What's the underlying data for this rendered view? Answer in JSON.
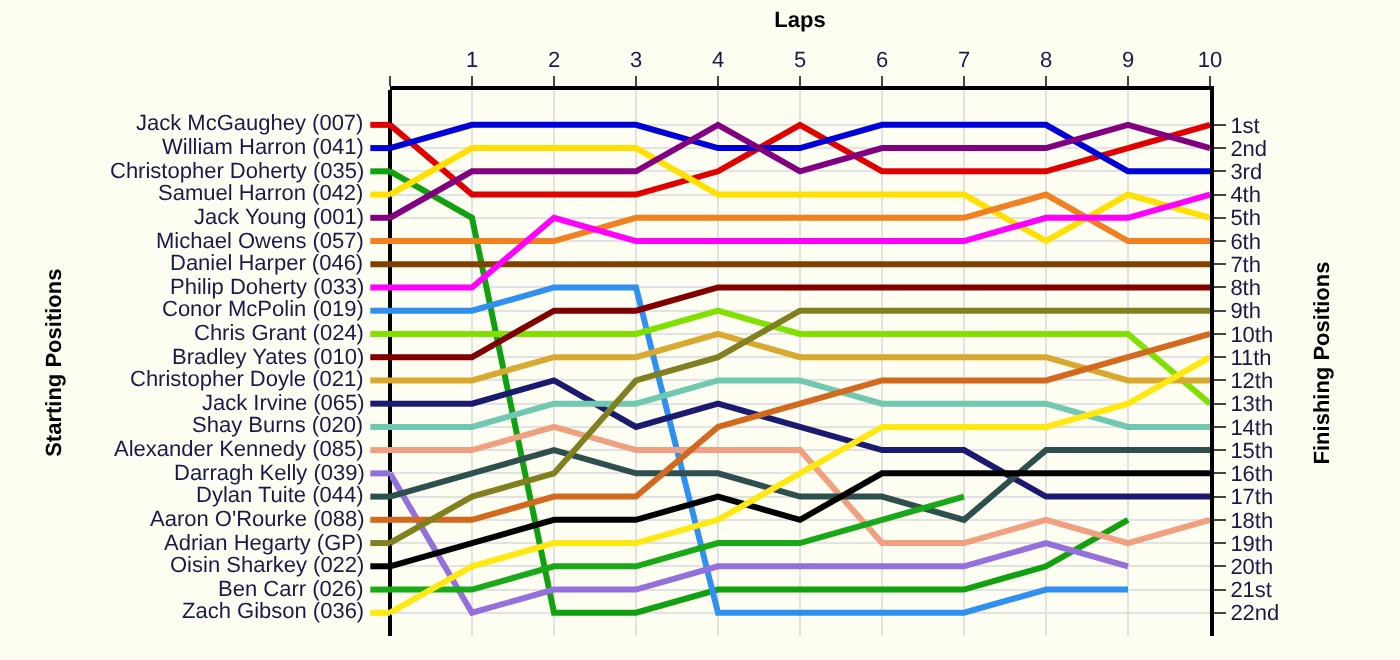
{
  "chart_data": {
    "type": "line",
    "xlabel": "Laps",
    "ylabel": "Finishing Positions",
    "grid": true,
    "legend": "left",
    "annotations": [
      "Starting Positions"
    ],
    "x": [
      0,
      1,
      2,
      3,
      4,
      5,
      6,
      7,
      8,
      9,
      10
    ],
    "xlim": [
      0,
      10
    ],
    "xticks": [
      {
        "value": 0,
        "label": null
      },
      1,
      2,
      3,
      4,
      5,
      6,
      7,
      8,
      9,
      10
    ],
    "ylim": [
      23,
      -0.5
    ],
    "yticks": [
      {
        "value": 1,
        "label": "1st"
      },
      {
        "value": 2,
        "label": "2nd"
      },
      {
        "value": 3,
        "label": "3rd"
      },
      {
        "value": 4,
        "label": "4th"
      },
      {
        "value": 5,
        "label": "5th"
      },
      {
        "value": 6,
        "label": "6th"
      },
      {
        "value": 7,
        "label": "7th"
      },
      {
        "value": 8,
        "label": "8th"
      },
      {
        "value": 9,
        "label": "9th"
      },
      {
        "value": 10,
        "label": "10th"
      },
      {
        "value": 11,
        "label": "11th"
      },
      {
        "value": 12,
        "label": "12th"
      },
      {
        "value": 13,
        "label": "13th"
      },
      {
        "value": 14,
        "label": "14th"
      },
      {
        "value": 15,
        "label": "15th"
      },
      {
        "value": 16,
        "label": "16th"
      },
      {
        "value": 17,
        "label": "17th"
      },
      {
        "value": 18,
        "label": "18th"
      },
      {
        "value": 19,
        "label": "19th"
      },
      {
        "value": 20,
        "label": "20th"
      },
      {
        "value": 21,
        "label": "21st"
      },
      {
        "value": 22,
        "label": "22nd"
      }
    ],
    "series": [
      {
        "name": "Jack McGaughey (007)",
        "color": "#e00000",
        "values": [
          1,
          4,
          4,
          4,
          3,
          1,
          3,
          3,
          3,
          2,
          1
        ]
      },
      {
        "name": "William Harron (041)",
        "color": "#0000d8",
        "values": [
          2,
          1,
          1,
          1,
          2,
          2,
          1,
          1,
          1,
          3,
          3
        ]
      },
      {
        "name": "Christopher Doherty (035)",
        "color": "#10a010",
        "values": [
          3,
          5,
          22,
          22,
          21,
          21,
          21,
          21,
          20,
          18,
          null
        ]
      },
      {
        "name": "Samuel Harron (042)",
        "color": "#ffe000",
        "values": [
          4,
          2,
          2,
          2,
          4,
          4,
          4,
          4,
          6,
          4,
          5
        ]
      },
      {
        "name": "Jack Young (001)",
        "color": "#800080",
        "values": [
          5,
          3,
          3,
          3,
          1,
          3,
          2,
          2,
          2,
          1,
          2
        ]
      },
      {
        "name": "Michael Owens (057)",
        "color": "#f08020",
        "values": [
          6,
          6,
          6,
          5,
          5,
          5,
          5,
          5,
          4,
          6,
          6
        ]
      },
      {
        "name": "Daniel Harper (046)",
        "color": "#804000",
        "values": [
          7,
          7,
          7,
          7,
          7,
          7,
          7,
          7,
          7,
          7,
          7
        ]
      },
      {
        "name": "Philip Doherty (033)",
        "color": "#ff00ff",
        "values": [
          8,
          8,
          5,
          6,
          6,
          6,
          6,
          6,
          5,
          5,
          4
        ]
      },
      {
        "name": "Conor McPolin (019)",
        "color": "#3090f0",
        "values": [
          9,
          9,
          8,
          8,
          22,
          22,
          22,
          22,
          21,
          21,
          null
        ]
      },
      {
        "name": "Chris Grant (024)",
        "color": "#80e000",
        "values": [
          10,
          10,
          10,
          10,
          9,
          10,
          10,
          10,
          10,
          10,
          13
        ]
      },
      {
        "name": "Bradley Yates (010)",
        "color": "#800000",
        "values": [
          11,
          11,
          9,
          9,
          8,
          8,
          8,
          8,
          8,
          8,
          8
        ]
      },
      {
        "name": "Christopher Doyle (021)",
        "color": "#d8a830",
        "values": [
          12,
          12,
          11,
          11,
          10,
          11,
          11,
          11,
          11,
          12,
          12
        ]
      },
      {
        "name": "Jack Irvine (065)",
        "color": "#1a1a70",
        "values": [
          13,
          13,
          12,
          14,
          13,
          14,
          15,
          15,
          17,
          17,
          17
        ]
      },
      {
        "name": "Shay Burns (020)",
        "color": "#70c8b0",
        "values": [
          14,
          14,
          13,
          13,
          12,
          12,
          13,
          13,
          13,
          14,
          14
        ]
      },
      {
        "name": "Alexander Kennedy (085)",
        "color": "#f0a080",
        "values": [
          15,
          15,
          14,
          15,
          15,
          15,
          19,
          19,
          18,
          19,
          18
        ]
      },
      {
        "name": "Darragh Kelly (039)",
        "color": "#9370db",
        "values": [
          16,
          22,
          21,
          21,
          20,
          20,
          20,
          20,
          19,
          20,
          null
        ]
      },
      {
        "name": "Dylan Tuite (044)",
        "color": "#2f4f4f",
        "values": [
          17,
          16,
          15,
          16,
          16,
          17,
          17,
          18,
          15,
          15,
          15
        ]
      },
      {
        "name": "Aaron O'Rourke (088)",
        "color": "#d2691e",
        "values": [
          18,
          18,
          17,
          17,
          14,
          13,
          12,
          12,
          12,
          11,
          10
        ]
      },
      {
        "name": "Adrian Hegarty (GP)",
        "color": "#808020",
        "values": [
          19,
          17,
          16,
          12,
          11,
          9,
          9,
          9,
          9,
          9,
          9
        ]
      },
      {
        "name": "Oisin Sharkey (022)",
        "color": "#000000",
        "values": [
          20,
          19,
          18,
          18,
          17,
          18,
          16,
          16,
          16,
          16,
          16
        ]
      },
      {
        "name": "Ben Carr (026)",
        "color": "#18a818",
        "values": [
          21,
          21,
          20,
          20,
          19,
          19,
          18,
          17,
          null,
          null,
          null
        ]
      },
      {
        "name": "Zach Gibson (036)",
        "color": "#ffe810",
        "values": [
          22,
          20,
          19,
          19,
          18,
          16,
          14,
          14,
          14,
          13,
          11
        ]
      }
    ]
  }
}
